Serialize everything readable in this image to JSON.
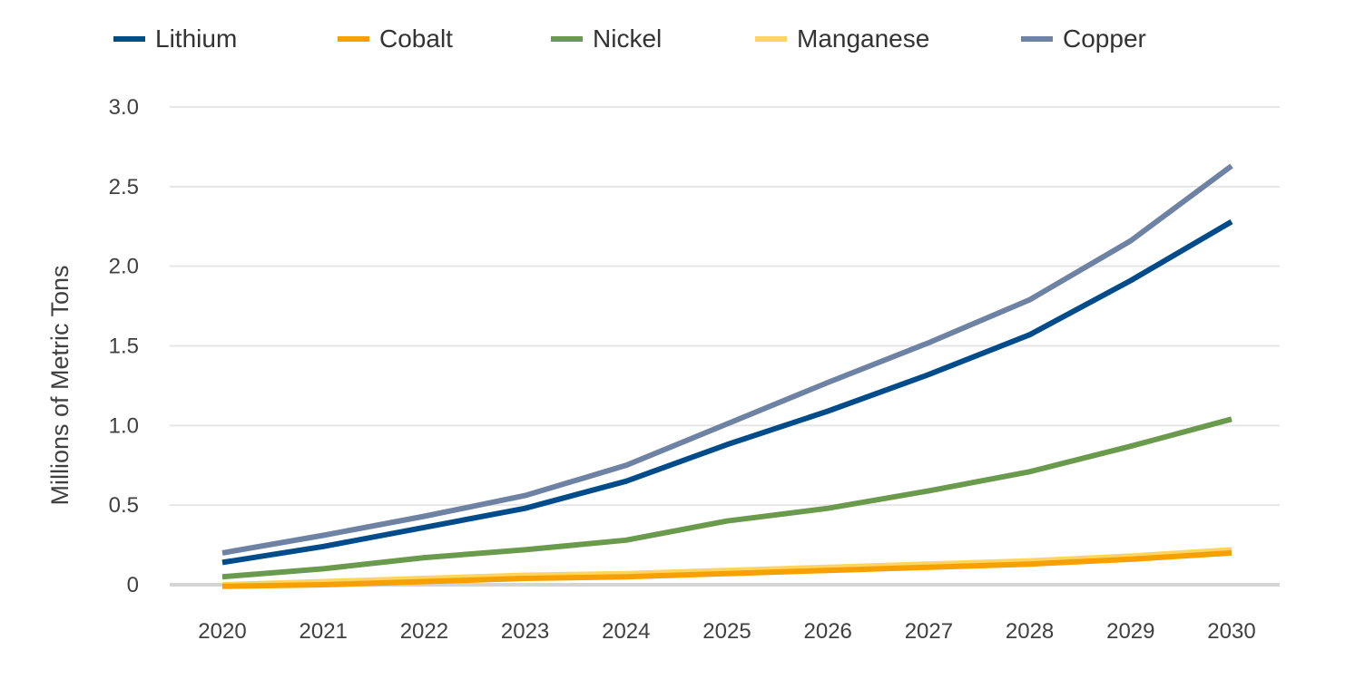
{
  "chart_data": {
    "type": "line",
    "title": "",
    "xlabel": "",
    "ylabel": "Millions of Metric Tons",
    "x": [
      "2020",
      "2021",
      "2022",
      "2023",
      "2024",
      "2025",
      "2026",
      "2027",
      "2028",
      "2029",
      "2030"
    ],
    "ylim": [
      0,
      3.0
    ],
    "yticks": [
      0,
      0.5,
      1.0,
      1.5,
      2.0,
      2.5,
      3.0
    ],
    "ytick_labels": [
      "0",
      "0.5",
      "1.0",
      "1.5",
      "2.0",
      "2.5",
      "3.0"
    ],
    "grid": true,
    "legend_position": "top",
    "series": [
      {
        "name": "Lithium",
        "color": "#004C8A",
        "values": [
          0.14,
          0.24,
          0.36,
          0.48,
          0.65,
          0.88,
          1.09,
          1.32,
          1.57,
          1.91,
          2.28
        ]
      },
      {
        "name": "Cobalt",
        "color": "#F7A000",
        "values": [
          -0.01,
          0.0,
          0.02,
          0.04,
          0.05,
          0.07,
          0.09,
          0.11,
          0.13,
          0.16,
          0.2
        ]
      },
      {
        "name": "Nickel",
        "color": "#6A9A4B",
        "values": [
          0.05,
          0.1,
          0.17,
          0.22,
          0.28,
          0.4,
          0.48,
          0.59,
          0.71,
          0.87,
          1.04
        ]
      },
      {
        "name": "Manganese",
        "color": "#FFD460",
        "values": [
          0.0,
          0.02,
          0.04,
          0.06,
          0.07,
          0.09,
          0.11,
          0.13,
          0.15,
          0.18,
          0.22
        ]
      },
      {
        "name": "Copper",
        "color": "#6E83A4",
        "values": [
          0.2,
          0.31,
          0.43,
          0.56,
          0.75,
          1.01,
          1.27,
          1.52,
          1.79,
          2.16,
          2.63
        ]
      }
    ],
    "draw_order": [
      "Copper",
      "Lithium",
      "Nickel",
      "Manganese",
      "Cobalt"
    ],
    "colors": {
      "gridline": "#E6E6E6",
      "baseline": "#D4D4D4",
      "text": "#404040"
    }
  }
}
